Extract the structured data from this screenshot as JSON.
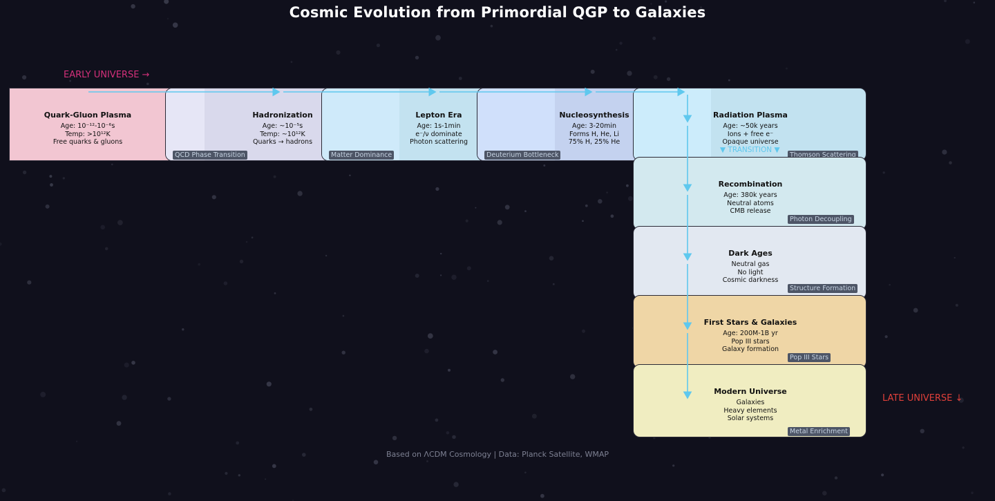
{
  "title": "Cosmic Evolution from Primordial QGP to Galaxies",
  "early_label": "EARLY UNIVERSE →",
  "late_label": "LATE UNIVERSE ↓",
  "footer": "Based on ΛCDM Cosmology | Data: Planck Satellite, WMAP",
  "transition_note": "▼ TRANSITION ▼",
  "colors": {
    "background": "#10101c",
    "arrow": "#5fc8ee",
    "early_label": "#d4307a",
    "late_label": "#e0403a"
  },
  "stages": [
    {
      "name": "Quark-Gluon Plasma",
      "lines": [
        "Age: 10⁻¹²-10⁻⁶s",
        "Temp: >10¹²K",
        "Free quarks & gluons"
      ],
      "tag": "",
      "color": "#f2c6d2"
    },
    {
      "name": "Hadronization",
      "lines": [
        "Age: ~10⁻⁵s",
        "Temp: ~10¹²K",
        "Quarks → hadrons"
      ],
      "tag": "QCD Phase Transition",
      "color": "#d9d9ec"
    },
    {
      "name": "Lepton Era",
      "lines": [
        "Age: 1s-1min",
        "e⁻/ν dominate",
        "Photon scattering"
      ],
      "tag": "Matter Dominance",
      "color": "#c3e2f0"
    },
    {
      "name": "Nucleosynthesis",
      "lines": [
        "Age: 3-20min",
        "Forms H, He, Li",
        "75% H, 25% He"
      ],
      "tag": "Deuterium Bottleneck",
      "color": "#c4d2ef"
    },
    {
      "name": "Radiation Plasma",
      "lines": [
        "Age: ~50k years",
        "Ions + free e⁻",
        "Opaque universe"
      ],
      "tag": "Thomson Scattering",
      "color": "#c2e2f0"
    },
    {
      "name": "Recombination",
      "lines": [
        "Age: 380k years",
        "Neutral atoms",
        "CMB release"
      ],
      "tag": "Photon Decoupling",
      "color": "#d3e9ef"
    },
    {
      "name": "Dark Ages",
      "lines": [
        "Neutral gas",
        "No light",
        "Cosmic darkness"
      ],
      "tag": "Structure Formation",
      "color": "#e2e8f1"
    },
    {
      "name": "First Stars & Galaxies",
      "lines": [
        "Age: 200M-1B yr",
        "Pop III stars",
        "Galaxy formation"
      ],
      "tag": "Pop III Stars",
      "color": "#efd6a6"
    },
    {
      "name": "Modern Universe",
      "lines": [
        "Galaxies",
        "Heavy elements",
        "Solar systems"
      ],
      "tag": "Metal Enrichment",
      "color": "#f0edc1"
    }
  ]
}
